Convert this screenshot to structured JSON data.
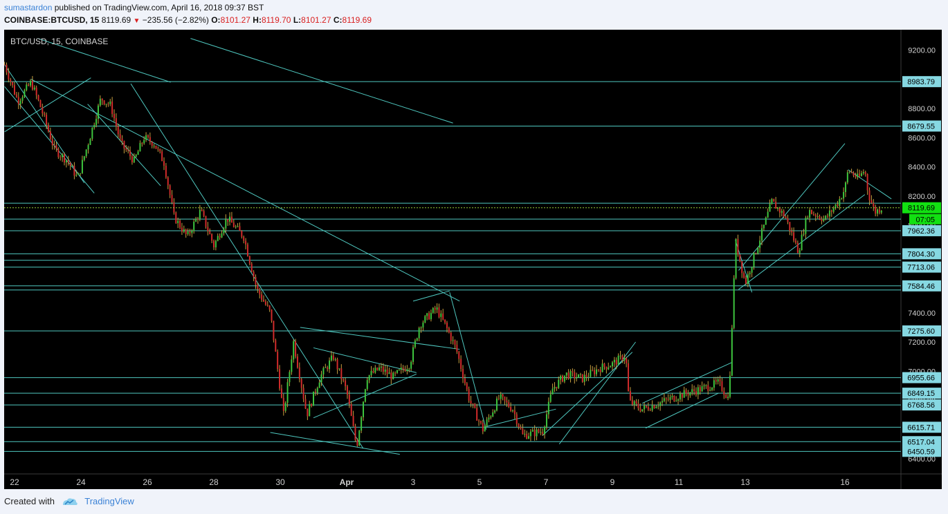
{
  "header": {
    "author": "sumastardon",
    "published_text": "published on TradingView.com, April 16, 2018 09:37 BST",
    "symbol": "COINBASE:BTCUSD, 15",
    "last": "8119.69",
    "change": "−235.56 (−2.82%)",
    "o_label": "O:",
    "o": "8101.27",
    "h_label": "H:",
    "h": "8119.70",
    "l_label": "L:",
    "l": "8101.27",
    "c_label": "C:",
    "c": "8119.69"
  },
  "footer": {
    "created_with": "Created with",
    "brand": "TradingView"
  },
  "colors": {
    "background": "#000000",
    "up": "#3ec53e",
    "down": "#d12b2b",
    "wick": "#c8a040",
    "drawing": "#4fc8c0",
    "price_line": "#9bd23a",
    "label_bg": "#86d8e2"
  },
  "chart_data": {
    "type": "candlestick",
    "title": "BTC/USD, 15, COINBASE",
    "ylim": [
      6300,
      9300
    ],
    "y_ticks": [
      6400,
      6600,
      6800,
      7000,
      7200,
      7400,
      7600,
      7800,
      8000,
      8200,
      8400,
      8600,
      8800,
      9000,
      9200
    ],
    "y_tick_labels": [
      "6400.00",
      "6600.00",
      "6800.00",
      "7000.00",
      "7200.00",
      "7400.00",
      "7600.00",
      "7800.00",
      "8000.00",
      "8200.00",
      "8400.00",
      "8600.00",
      "8800.00",
      "9000.00",
      "9200.00"
    ],
    "x_ticks": [
      "22",
      "24",
      "26",
      "28",
      "30",
      "Apr",
      "3",
      "5",
      "7",
      "9",
      "11",
      "13",
      "16"
    ],
    "x_tick_days": [
      0,
      2,
      4,
      6,
      8,
      10,
      12,
      14,
      16,
      18,
      20,
      22,
      25
    ],
    "horizontal_levels": [
      8983.79,
      8679.55,
      8150.74,
      8042.0,
      7962.36,
      7804.3,
      7760.0,
      7713.06,
      7584.46,
      7556.0,
      7275.6,
      6955.66,
      6849.15,
      6768.56,
      6615.71,
      6517.04,
      6450.59
    ],
    "level_labels": [
      "8983.79",
      "8679.55",
      "7962.36",
      "7804.30",
      "7713.06",
      "7584.46",
      "7275.60",
      "6955.66",
      "6849.15",
      "6768.56",
      "6615.71",
      "6517.04",
      "6450.59"
    ],
    "last_price": 8119.69,
    "last_price_label": "8119.69",
    "countdown": "07:05",
    "price_path": [
      [
        -0.3,
        9100
      ],
      [
        0.1,
        8850
      ],
      [
        0.5,
        8980
      ],
      [
        0.8,
        8800
      ],
      [
        1.2,
        8520
      ],
      [
        1.6,
        8440
      ],
      [
        1.9,
        8320
      ],
      [
        2.2,
        8550
      ],
      [
        2.6,
        8870
      ],
      [
        2.9,
        8820
      ],
      [
        3.2,
        8560
      ],
      [
        3.6,
        8440
      ],
      [
        3.9,
        8600
      ],
      [
        4.2,
        8560
      ],
      [
        4.5,
        8430
      ],
      [
        4.8,
        8060
      ],
      [
        5.2,
        7920
      ],
      [
        5.6,
        8100
      ],
      [
        6.0,
        7860
      ],
      [
        6.4,
        8050
      ],
      [
        6.9,
        7920
      ],
      [
        7.3,
        7560
      ],
      [
        7.7,
        7400
      ],
      [
        8.1,
        6700
      ],
      [
        8.4,
        7200
      ],
      [
        8.8,
        6700
      ],
      [
        9.2,
        6960
      ],
      [
        9.6,
        7100
      ],
      [
        10.0,
        6860
      ],
      [
        10.3,
        6480
      ],
      [
        10.6,
        6960
      ],
      [
        11.0,
        7020
      ],
      [
        11.4,
        6960
      ],
      [
        11.9,
        7050
      ],
      [
        12.2,
        7320
      ],
      [
        12.7,
        7430
      ],
      [
        13.0,
        7300
      ],
      [
        13.3,
        7150
      ],
      [
        13.7,
        6800
      ],
      [
        14.1,
        6600
      ],
      [
        14.6,
        6820
      ],
      [
        15.0,
        6740
      ],
      [
        15.3,
        6560
      ],
      [
        15.9,
        6590
      ],
      [
        16.2,
        6880
      ],
      [
        16.6,
        6980
      ],
      [
        17.1,
        6950
      ],
      [
        17.6,
        7020
      ],
      [
        18.0,
        7050
      ],
      [
        18.4,
        7110
      ],
      [
        18.5,
        6790
      ],
      [
        18.9,
        6740
      ],
      [
        19.5,
        6790
      ],
      [
        20.1,
        6840
      ],
      [
        20.7,
        6880
      ],
      [
        21.2,
        6920
      ],
      [
        21.5,
        6810
      ],
      [
        21.6,
        7280
      ],
      [
        21.7,
        7900
      ],
      [
        22.0,
        7600
      ],
      [
        22.4,
        7880
      ],
      [
        22.8,
        8160
      ],
      [
        23.2,
        8060
      ],
      [
        23.6,
        7820
      ],
      [
        23.9,
        8100
      ],
      [
        24.4,
        8040
      ],
      [
        24.8,
        8160
      ],
      [
        25.0,
        8250
      ],
      [
        25.1,
        8380
      ],
      [
        25.4,
        8320
      ],
      [
        25.6,
        8380
      ],
      [
        25.7,
        8220
      ],
      [
        25.9,
        8090
      ],
      [
        26.1,
        8120
      ]
    ],
    "trend_lines": [
      [
        [
          -0.3,
          8640
        ],
        [
          2.3,
          9010
        ]
      ],
      [
        [
          0.7,
          9280
        ],
        [
          4.7,
          8980
        ]
      ],
      [
        [
          5.3,
          9280
        ],
        [
          13.2,
          8700
        ]
      ],
      [
        [
          0.5,
          9000
        ],
        [
          13.4,
          7480
        ]
      ],
      [
        [
          -0.3,
          9100
        ],
        [
          2.1,
          8290
        ]
      ],
      [
        [
          -0.3,
          8950
        ],
        [
          2.4,
          8220
        ]
      ],
      [
        [
          2.2,
          8830
        ],
        [
          4.4,
          8270
        ]
      ],
      [
        [
          3.5,
          8970
        ],
        [
          10.5,
          6470
        ]
      ],
      [
        [
          8.6,
          7300
        ],
        [
          13.4,
          7150
        ]
      ],
      [
        [
          7.7,
          6580
        ],
        [
          11.6,
          6430
        ]
      ],
      [
        [
          9.0,
          7160
        ],
        [
          12.1,
          6990
        ]
      ],
      [
        [
          9.0,
          6680
        ],
        [
          12.1,
          6980
        ]
      ],
      [
        [
          14.2,
          6620
        ],
        [
          16.3,
          6740
        ]
      ],
      [
        [
          16.4,
          6500
        ],
        [
          18.7,
          7200
        ]
      ],
      [
        [
          15.9,
          6560
        ],
        [
          18.6,
          7130
        ]
      ],
      [
        [
          19.0,
          6610
        ],
        [
          21.2,
          6850
        ]
      ],
      [
        [
          18.9,
          6780
        ],
        [
          21.6,
          7060
        ]
      ],
      [
        [
          21.8,
          7560
        ],
        [
          25.6,
          8210
        ]
      ],
      [
        [
          21.8,
          7690
        ],
        [
          25.0,
          8560
        ]
      ],
      [
        [
          21.7,
          7900
        ],
        [
          22.2,
          7540
        ]
      ],
      [
        [
          25.1,
          8380
        ],
        [
          26.4,
          8180
        ]
      ],
      [
        [
          12.0,
          7480
        ],
        [
          13.1,
          7550
        ]
      ],
      [
        [
          13.1,
          7540
        ],
        [
          14.2,
          6600
        ]
      ]
    ]
  }
}
